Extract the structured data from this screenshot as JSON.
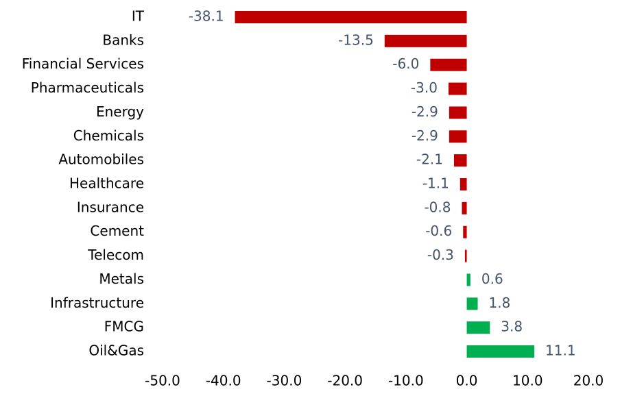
{
  "chart_data": {
    "type": "hbar",
    "categories": [
      "IT",
      "Banks",
      "Financial Services",
      "Pharmaceuticals",
      "Energy",
      "Chemicals",
      "Automobiles",
      "Healthcare",
      "Insurance",
      "Cement",
      "Telecom",
      "Metals",
      "Infrastructure",
      "FMCG",
      "Oil&Gas"
    ],
    "values": [
      -38.1,
      -13.5,
      -6.0,
      -3.0,
      -2.9,
      -2.9,
      -2.1,
      -1.1,
      -0.8,
      -0.6,
      -0.3,
      0.6,
      1.8,
      3.8,
      11.1
    ],
    "value_labels": [
      "-38.1",
      "-13.5",
      "-6.0",
      "-3.0",
      "-2.9",
      "-2.9",
      "-2.1",
      "-1.1",
      "-0.8",
      "-0.6",
      "-0.3",
      "0.6",
      "1.8",
      "3.8",
      "11.1"
    ],
    "negative_color": "#c00000",
    "positive_color": "#00b050",
    "xlim": [
      -50,
      20
    ],
    "xticks": [
      {
        "value": -50,
        "label": "-50.0"
      },
      {
        "value": -40,
        "label": "-40.0"
      },
      {
        "value": -30,
        "label": "-30.0"
      },
      {
        "value": -20,
        "label": "-20.0"
      },
      {
        "value": -10,
        "label": "-10.0"
      },
      {
        "value": 0,
        "label": "0.0"
      },
      {
        "value": 10,
        "label": "10.0"
      },
      {
        "value": 20,
        "label": "20.0"
      }
    ]
  }
}
